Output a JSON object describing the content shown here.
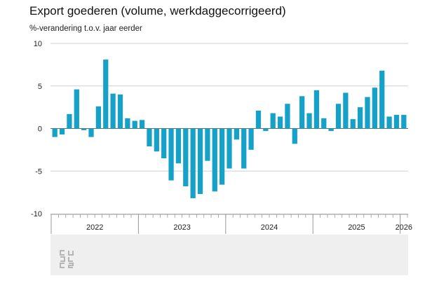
{
  "title": "Export goederen (volume, werkdaggecorrigeerd)",
  "subtitle": "%-verandering t.o.v. jaar eerder",
  "logo_name": "cbs-logo",
  "chart_data": {
    "type": "bar",
    "title": "Export goederen (volume, werkdaggecorrigeerd)",
    "ylabel": "%-verandering t.o.v. jaar eerder",
    "xlabel": "",
    "ylim": [
      -10,
      10
    ],
    "yticks": [
      10,
      5,
      0,
      -5,
      -10
    ],
    "grid": true,
    "bar_color": "#16a1c9",
    "years": [
      "2022",
      "2023",
      "2024",
      "2025",
      "2026"
    ],
    "year_month_counts": [
      12,
      12,
      12,
      12,
      1
    ],
    "categories": [
      "2022-01",
      "2022-02",
      "2022-03",
      "2022-04",
      "2022-05",
      "2022-06",
      "2022-07",
      "2022-08",
      "2022-09",
      "2022-10",
      "2022-11",
      "2022-12",
      "2023-01",
      "2023-02",
      "2023-03",
      "2023-04",
      "2023-05",
      "2023-06",
      "2023-07",
      "2023-08",
      "2023-09",
      "2023-10",
      "2023-11",
      "2023-12",
      "2024-01",
      "2024-02",
      "2024-03",
      "2024-04",
      "2024-05",
      "2024-06",
      "2024-07",
      "2024-08",
      "2024-09",
      "2024-10",
      "2024-11",
      "2024-12",
      "2025-01",
      "2025-02",
      "2025-03",
      "2025-04",
      "2025-05",
      "2025-06",
      "2025-07",
      "2025-08",
      "2025-09",
      "2025-10",
      "2025-11",
      "2025-12",
      "2026-01"
    ],
    "values": [
      -1.0,
      -0.7,
      1.7,
      4.6,
      -0.2,
      -1.0,
      2.6,
      8.1,
      4.1,
      4.0,
      1.2,
      0.9,
      1.0,
      -2.1,
      -2.7,
      -3.5,
      -6.1,
      -4.1,
      -6.8,
      -8.2,
      -7.7,
      -3.8,
      -7.4,
      -6.6,
      -4.7,
      -1.3,
      -4.7,
      -2.5,
      2.1,
      -0.3,
      1.8,
      1.4,
      2.9,
      -1.8,
      3.8,
      1.8,
      4.5,
      1.2,
      -0.3,
      2.9,
      4.2,
      1.1,
      2.5,
      3.7,
      4.8,
      6.8,
      1.4,
      1.6,
      1.6
    ]
  }
}
